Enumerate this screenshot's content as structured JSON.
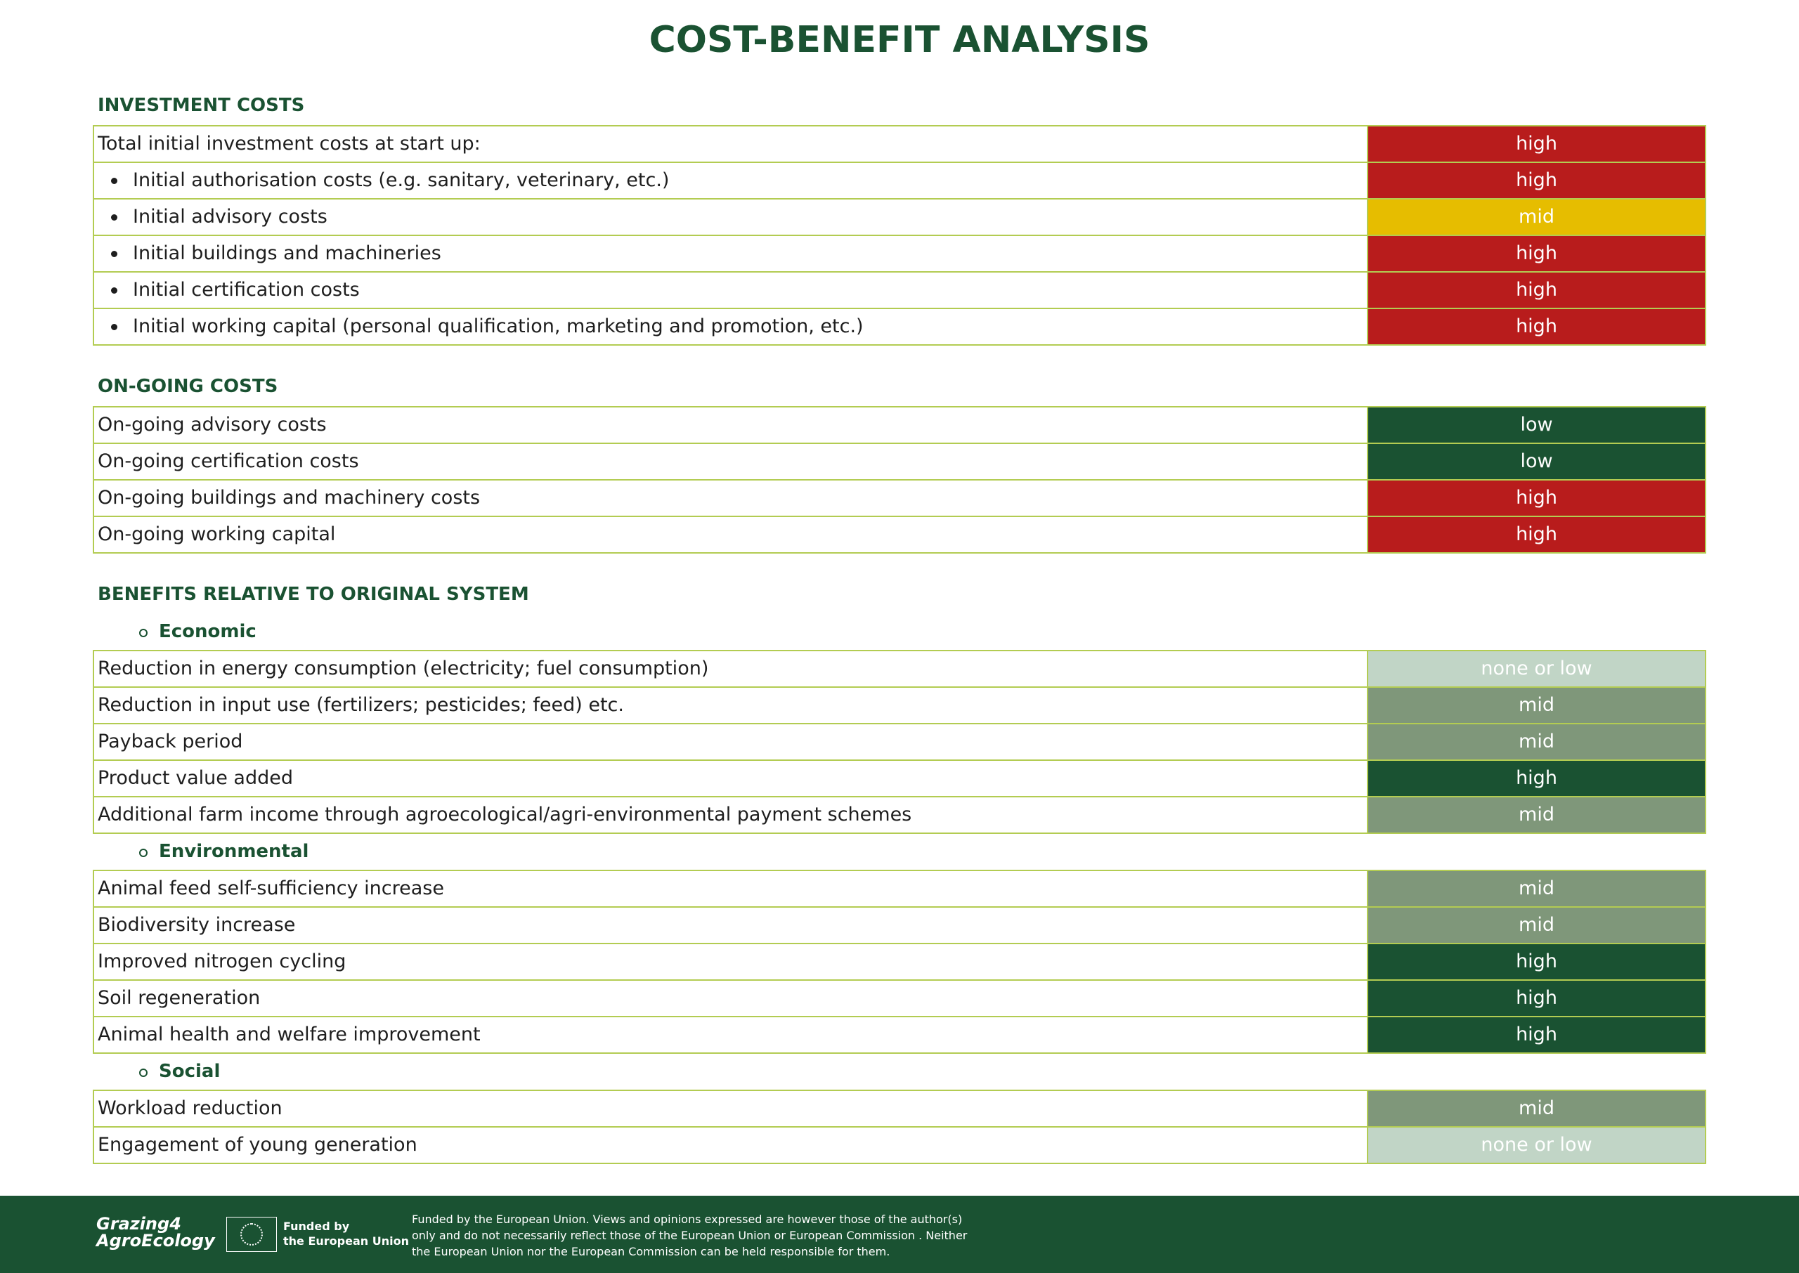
{
  "title": "COST-BENEFIT ANALYSIS",
  "investment": {
    "heading": "INVESTMENT COSTS",
    "colors": {
      "high": "#b81c1c",
      "mid": "#e6bd00"
    },
    "total": {
      "label": "Total initial investment costs at start up:",
      "rating": "high"
    },
    "items": [
      {
        "label": "Initial authorisation costs (e.g. sanitary, veterinary, etc.)",
        "rating": "high"
      },
      {
        "label": "Initial advisory costs",
        "rating": "mid"
      },
      {
        "label": "Initial buildings and machineries",
        "rating": "high"
      },
      {
        "label": "Initial certification costs",
        "rating": "high"
      },
      {
        "label": "Initial working capital (personal qualification, marketing and promotion, etc.)",
        "rating": "high"
      }
    ]
  },
  "ongoing": {
    "heading": "ON-GOING COSTS",
    "colors": {
      "high": "#b81c1c",
      "low": "#1a5232"
    },
    "rows": [
      {
        "label": "On-going advisory costs",
        "rating": "low"
      },
      {
        "label": "On-going certification costs",
        "rating": "low"
      },
      {
        "label": "On-going buildings and machinery costs",
        "rating": "high"
      },
      {
        "label": "On-going working capital",
        "rating": "high"
      }
    ]
  },
  "benefits": {
    "heading": "BENEFITS RELATIVE TO ORIGINAL SYSTEM",
    "colors": {
      "high": "#1a5232",
      "mid": "#7f977a",
      "none or low": "#c1d5c6"
    },
    "groups": [
      {
        "title": "Economic",
        "rows": [
          {
            "label": "Reduction in energy consumption (electricity; fuel consumption)",
            "rating": "none or low"
          },
          {
            "label": "Reduction in input use (fertilizers; pesticides; feed) etc.",
            "rating": "mid"
          },
          {
            "label": "Payback period",
            "rating": "mid"
          },
          {
            "label": "Product value added",
            "rating": "high"
          },
          {
            "label": "Additional farm income through agroecological/agri-environmental payment schemes",
            "rating": "mid"
          }
        ]
      },
      {
        "title": "Environmental",
        "rows": [
          {
            "label": "Animal feed self-sufficiency increase",
            "rating": "mid"
          },
          {
            "label": "Biodiversity increase",
            "rating": "mid"
          },
          {
            "label": "Improved nitrogen cycling",
            "rating": "high"
          },
          {
            "label": "Soil regeneration",
            "rating": "high"
          },
          {
            "label": "Animal health and welfare improvement",
            "rating": "high"
          }
        ]
      },
      {
        "title": "Social",
        "rows": [
          {
            "label": "Workload reduction",
            "rating": "mid"
          },
          {
            "label": "Engagement of young generation",
            "rating": "none or low"
          }
        ]
      }
    ]
  },
  "footer": {
    "logo": [
      "Grazing4",
      "AgroEcology"
    ],
    "eu": [
      "Funded by",
      "the European Union"
    ],
    "disclaimer": [
      "Funded by the European Union. Views and opinions expressed are however those of the author(s)",
      "only and do not necessarily reflect those of the European Union or European Commission . Neither",
      "the European Union nor the European Commission can be held responsible for them."
    ]
  }
}
